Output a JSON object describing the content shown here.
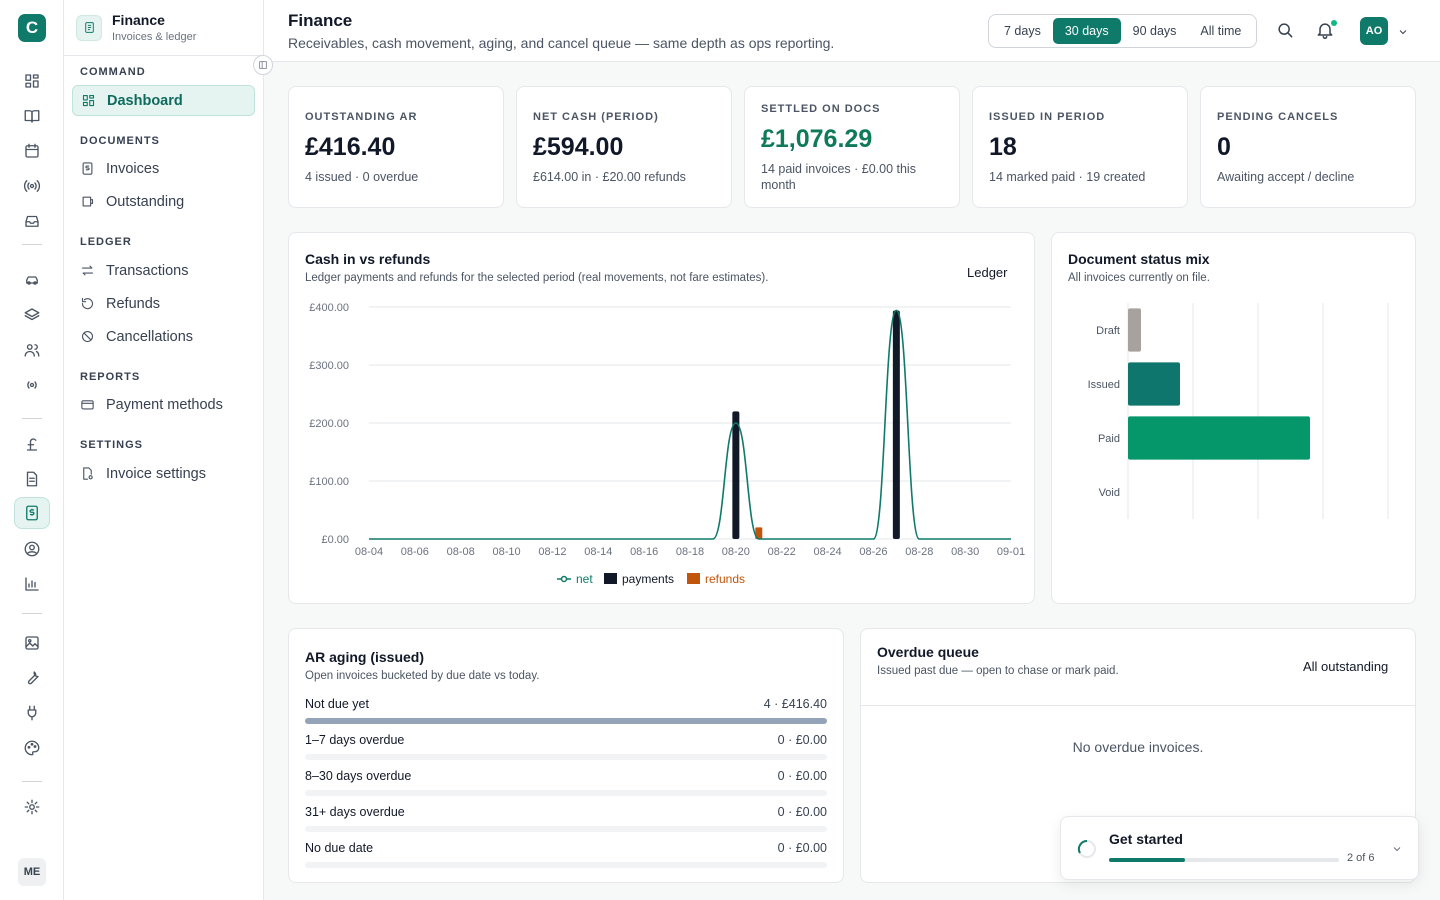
{
  "rail": {
    "logo": "C",
    "avatar": "ME",
    "icons": [
      "dashboard-icon",
      "book-icon",
      "calendar-icon",
      "broadcast-icon",
      "inbox-icon",
      "car-icon",
      "layers-icon",
      "users-icon",
      "signal-icon",
      "pound-icon",
      "document-icon",
      "invoice-icon",
      "user-circle-icon",
      "bar-chart-icon",
      "image-icon",
      "wrench-icon",
      "plug-icon",
      "palette-icon",
      "gear-icon"
    ]
  },
  "sidebar": {
    "title": "Finance",
    "subtitle": "Invoices & ledger",
    "sections": {
      "command": "COMMAND",
      "documents": "DOCUMENTS",
      "ledger": "LEDGER",
      "reports": "REPORTS",
      "settings": "SETTINGS"
    },
    "items": {
      "dashboard": "Dashboard",
      "invoices": "Invoices",
      "outstanding": "Outstanding",
      "transactions": "Transactions",
      "refunds": "Refunds",
      "cancellations": "Cancellations",
      "payment_methods": "Payment methods",
      "invoice_settings": "Invoice settings"
    }
  },
  "header": {
    "title": "Finance",
    "subtitle": "Receivables, cash movement, aging, and cancel queue — same depth as ops reporting.",
    "ranges": [
      "7 days",
      "30 days",
      "90 days",
      "All time"
    ],
    "selected_range": "30 days",
    "avatar": "AO"
  },
  "kpis": [
    {
      "label": "OUTSTANDING AR",
      "value": "£416.40",
      "sub": "4 issued · 0 overdue"
    },
    {
      "label": "NET CASH (PERIOD)",
      "value": "£594.00",
      "sub": "£614.00 in · £20.00 refunds"
    },
    {
      "label": "SETTLED ON DOCS",
      "value": "£1,076.29",
      "sub": "14 paid invoices · £0.00 this month",
      "accent": "#0f7a5a"
    },
    {
      "label": "ISSUED IN PERIOD",
      "value": "18",
      "sub": "14 marked paid · 19 created"
    },
    {
      "label": "PENDING CANCELS",
      "value": "0",
      "sub": "Awaiting accept / decline"
    }
  ],
  "cash_chart": {
    "title": "Cash in vs refunds",
    "subtitle": "Ledger payments and refunds for the selected period (real movements, not fare estimates).",
    "link": "Ledger"
  },
  "status_chart": {
    "title": "Document status mix",
    "subtitle": "All invoices currently on file."
  },
  "chart_data": [
    {
      "type": "bar",
      "title": "Cash in vs refunds",
      "x": [
        "08-04",
        "08-05",
        "08-06",
        "08-07",
        "08-08",
        "08-09",
        "08-10",
        "08-11",
        "08-12",
        "08-13",
        "08-14",
        "08-15",
        "08-16",
        "08-17",
        "08-18",
        "08-19",
        "08-20",
        "08-21",
        "08-22",
        "08-23",
        "08-24",
        "08-25",
        "08-26",
        "08-27",
        "08-28",
        "08-29",
        "08-30",
        "08-31",
        "09-01"
      ],
      "x_tick_labels": [
        "08-04",
        "08-06",
        "08-08",
        "08-10",
        "08-12",
        "08-14",
        "08-16",
        "08-18",
        "08-20",
        "08-22",
        "08-24",
        "08-26",
        "08-28",
        "08-30",
        "09-01"
      ],
      "y_tick_labels": [
        "£0.00",
        "£100.00",
        "£200.00",
        "£300.00",
        "£400.00"
      ],
      "ylim": [
        0,
        400
      ],
      "series": [
        {
          "name": "net",
          "kind": "line",
          "color": "#0f7a6a",
          "values": [
            0,
            0,
            0,
            0,
            0,
            0,
            0,
            0,
            0,
            0,
            0,
            0,
            0,
            0,
            0,
            0,
            200,
            0,
            0,
            0,
            0,
            0,
            0,
            394,
            0,
            0,
            0,
            0,
            0
          ]
        },
        {
          "name": "payments",
          "kind": "bar",
          "color": "#111827",
          "values": [
            0,
            0,
            0,
            0,
            0,
            0,
            0,
            0,
            0,
            0,
            0,
            0,
            0,
            0,
            0,
            0,
            220,
            0,
            0,
            0,
            0,
            0,
            0,
            394,
            0,
            0,
            0,
            0,
            0
          ]
        },
        {
          "name": "refunds",
          "kind": "bar",
          "color": "#c2550c",
          "values": [
            0,
            0,
            0,
            0,
            0,
            0,
            0,
            0,
            0,
            0,
            0,
            0,
            0,
            0,
            0,
            0,
            0,
            20,
            0,
            0,
            0,
            0,
            0,
            0,
            0,
            0,
            0,
            0,
            0
          ]
        }
      ],
      "legend": "bottom"
    },
    {
      "type": "bar",
      "orientation": "horizontal",
      "title": "Document status mix",
      "categories": [
        "Draft",
        "Issued",
        "Paid",
        "Void"
      ],
      "values": [
        1,
        4,
        14,
        0
      ],
      "colors": [
        "#a8a29e",
        "#0f766e",
        "#059669",
        "#9ca3af"
      ],
      "xlim": [
        0,
        20
      ],
      "grid": true
    }
  ],
  "aging": {
    "title": "AR aging (issued)",
    "subtitle": "Open invoices bucketed by due date vs today.",
    "rows": [
      {
        "label": "Not due yet",
        "value": "4 · £416.40",
        "fill": 1
      },
      {
        "label": "1–7 days overdue",
        "value": "0 · £0.00",
        "fill": 0
      },
      {
        "label": "8–30 days overdue",
        "value": "0 · £0.00",
        "fill": 0
      },
      {
        "label": "31+ days overdue",
        "value": "0 · £0.00",
        "fill": 0
      },
      {
        "label": "No due date",
        "value": "0 · £0.00",
        "fill": 0
      }
    ]
  },
  "overdue": {
    "title": "Overdue queue",
    "subtitle": "Issued past due — open to chase or mark paid.",
    "link": "All outstanding",
    "empty": "No overdue invoices."
  },
  "toast": {
    "title": "Get started",
    "progress_text": "2 of 6",
    "progress": 0.33
  }
}
